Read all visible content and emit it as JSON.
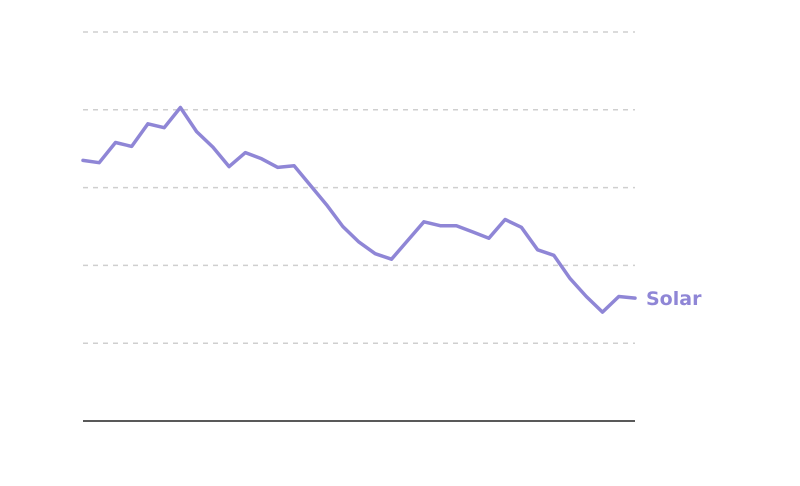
{
  "chart_data": {
    "type": "line",
    "title": "",
    "xlabel": "",
    "ylabel": "",
    "x": [
      0,
      1,
      2,
      3,
      4,
      5,
      6,
      7,
      8,
      9,
      10,
      11,
      12,
      13,
      14,
      15,
      16,
      17,
      18,
      19,
      20,
      21,
      22,
      23,
      24,
      25,
      26,
      27,
      28,
      29,
      30,
      31,
      32,
      33,
      34
    ],
    "ylim": [
      0,
      5
    ],
    "yticks": [
      1,
      2,
      3,
      4,
      5
    ],
    "grid": true,
    "legend": "none",
    "series": [
      {
        "name": "Solar",
        "color": "#8f86d6",
        "values": [
          3.35,
          3.32,
          3.58,
          3.53,
          3.82,
          3.77,
          4.03,
          3.72,
          3.52,
          3.27,
          3.45,
          3.37,
          3.26,
          3.28,
          3.03,
          2.78,
          2.5,
          2.3,
          2.15,
          2.08,
          2.32,
          2.56,
          2.51,
          2.51,
          2.43,
          2.35,
          2.59,
          2.49,
          2.2,
          2.13,
          1.83,
          1.6,
          1.4,
          1.6,
          1.58
        ]
      }
    ]
  }
}
